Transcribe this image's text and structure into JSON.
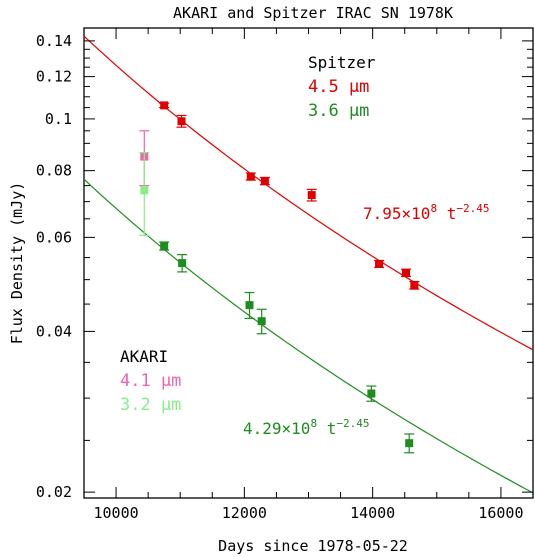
{
  "chart_data": {
    "type": "scatter",
    "title": "AKARI and Spitzer IRAC SN 1978K",
    "xlabel": "Days since 1978-05-22",
    "ylabel": "Flux Density (mJy)",
    "xlim": [
      9500,
      16500
    ],
    "ylim": [
      0.0195,
      0.148
    ],
    "y_scale": "log",
    "x_ticks": [
      10000,
      12000,
      14000,
      16000
    ],
    "x_tick_labels": [
      "10000",
      "12000",
      "14000",
      "16000"
    ],
    "y_ticks": [
      0.02,
      0.04,
      0.06,
      0.08,
      0.1,
      0.12,
      0.14
    ],
    "y_tick_labels": [
      "0.02",
      "0.04",
      "0.06",
      "0.08",
      "0.1",
      "0.12",
      "0.14"
    ],
    "legend_groups": [
      {
        "title": "Spitzer",
        "entries": [
          {
            "label": "4.5 μm",
            "color": "#e00000"
          },
          {
            "label": "3.6 μm",
            "color": "#1f8c1f"
          }
        ]
      },
      {
        "title": "AKARI",
        "entries": [
          {
            "label": "4.1 μm",
            "color": "#ee66aa"
          },
          {
            "label": "3.2 μm",
            "color": "#88ee88"
          }
        ]
      }
    ],
    "series": [
      {
        "name": "4.5 μm",
        "color": "#e00000",
        "points": [
          {
            "x": 10750,
            "y": 0.106,
            "err": 0.001
          },
          {
            "x": 11020,
            "y": 0.099,
            "err": 0.0025
          },
          {
            "x": 12100,
            "y": 0.078,
            "err": 0.0012
          },
          {
            "x": 12320,
            "y": 0.0765,
            "err": 0.0012
          },
          {
            "x": 13050,
            "y": 0.072,
            "err": 0.0018
          },
          {
            "x": 14100,
            "y": 0.0535,
            "err": 0.0008
          },
          {
            "x": 14520,
            "y": 0.0515,
            "err": 0.0008
          },
          {
            "x": 14650,
            "y": 0.0488,
            "err": 0.0008
          }
        ]
      },
      {
        "name": "3.6 μm",
        "color": "#1f8c1f",
        "points": [
          {
            "x": 10750,
            "y": 0.0578,
            "err": 0.001
          },
          {
            "x": 11030,
            "y": 0.0537,
            "err": 0.002
          },
          {
            "x": 12080,
            "y": 0.0448,
            "err": 0.0025
          },
          {
            "x": 12270,
            "y": 0.0418,
            "err": 0.0022
          },
          {
            "x": 13980,
            "y": 0.0306,
            "err": 0.001
          },
          {
            "x": 14570,
            "y": 0.0247,
            "err": 0.001
          }
        ]
      },
      {
        "name": "4.1 μm",
        "color": "#ee66aa",
        "points": [
          {
            "x": 10440,
            "y": 0.085,
            "err": 0.01
          }
        ]
      },
      {
        "name": "3.2 μm",
        "color": "#88ee88",
        "points": [
          {
            "x": 10440,
            "y": 0.0735,
            "err": 0.013
          }
        ]
      }
    ],
    "fits": [
      {
        "series": "4.5 μm",
        "coef": 795000000.0,
        "exponent": -2.45,
        "color": "#e00000",
        "label_coef": "7.95×10",
        "label_coef_exp": "8",
        "label_t": " t",
        "label_exp": "−2.45"
      },
      {
        "series": "3.6 μm",
        "coef": 429000000.0,
        "exponent": -2.45,
        "color": "#1f8c1f",
        "label_coef": "4.29×10",
        "label_coef_exp": "8",
        "label_t": " t",
        "label_exp": "−2.45"
      }
    ]
  }
}
